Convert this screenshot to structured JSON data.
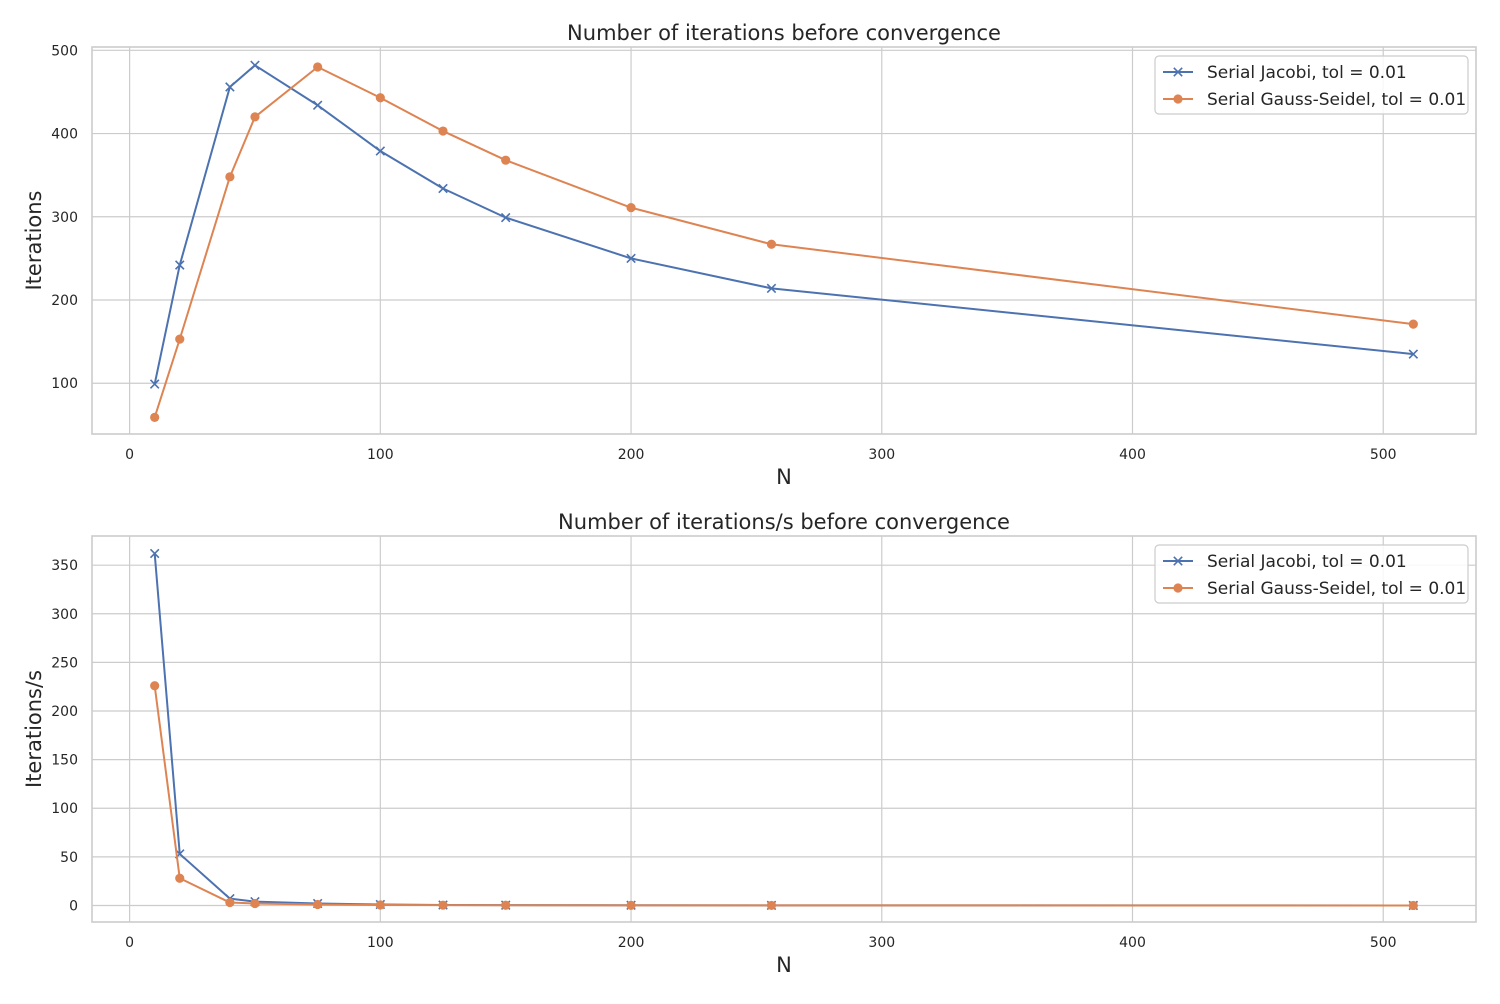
{
  "chart_data": [
    {
      "type": "line",
      "title": "Number of iterations before convergence",
      "xlabel": "N",
      "ylabel": "Iterations",
      "xlim": [
        -15,
        537
      ],
      "ylim": [
        39,
        504
      ],
      "xticks": [
        0,
        100,
        200,
        300,
        400,
        500
      ],
      "xtick_labels": [
        "0",
        "100",
        "200",
        "300",
        "400",
        "500"
      ],
      "yticks": [
        100,
        200,
        300,
        400,
        500
      ],
      "ytick_labels": [
        "100",
        "200",
        "300",
        "400",
        "500"
      ],
      "grid": true,
      "legend_position": "top-right",
      "x": [
        10,
        20,
        40,
        50,
        75,
        100,
        125,
        150,
        200,
        256,
        512
      ],
      "series": [
        {
          "name": "Serial Jacobi, tol = 0.01",
          "color": "#4c72b0",
          "marker": "x",
          "values": [
            99,
            242,
            456,
            482,
            434,
            379,
            334,
            299,
            250,
            214,
            135
          ]
        },
        {
          "name": "Serial Gauss-Seidel, tol = 0.01",
          "color": "#dd8452",
          "marker": "circle",
          "values": [
            59,
            153,
            348,
            420,
            480,
            443,
            403,
            368,
            311,
            267,
            171
          ]
        }
      ]
    },
    {
      "type": "line",
      "title": "Number of iterations/s before convergence",
      "xlabel": "N",
      "ylabel": "Iterations/s",
      "xlim": [
        -15,
        537
      ],
      "ylim": [
        -17,
        380
      ],
      "xticks": [
        0,
        100,
        200,
        300,
        400,
        500
      ],
      "xtick_labels": [
        "0",
        "100",
        "200",
        "300",
        "400",
        "500"
      ],
      "yticks": [
        0,
        50,
        100,
        150,
        200,
        250,
        300,
        350
      ],
      "ytick_labels": [
        "0",
        "50",
        "100",
        "150",
        "200",
        "250",
        "300",
        "350"
      ],
      "grid": true,
      "legend_position": "top-right",
      "x": [
        10,
        20,
        40,
        50,
        75,
        100,
        125,
        150,
        200,
        256,
        512
      ],
      "series": [
        {
          "name": "Serial Jacobi, tol = 0.01",
          "color": "#4c72b0",
          "marker": "x",
          "values": [
            362,
            53,
            7,
            4,
            2,
            1,
            0.5,
            0.3,
            0.2,
            0.1,
            0.02
          ]
        },
        {
          "name": "Serial Gauss-Seidel, tol = 0.01",
          "color": "#dd8452",
          "marker": "circle",
          "values": [
            226,
            28,
            3,
            2,
            1,
            0.5,
            0.3,
            0.2,
            0.1,
            0.05,
            0.01
          ]
        }
      ]
    }
  ],
  "colors": {
    "grid": "#cccccc",
    "frame": "#cccccc",
    "legend_border": "#cccccc"
  }
}
